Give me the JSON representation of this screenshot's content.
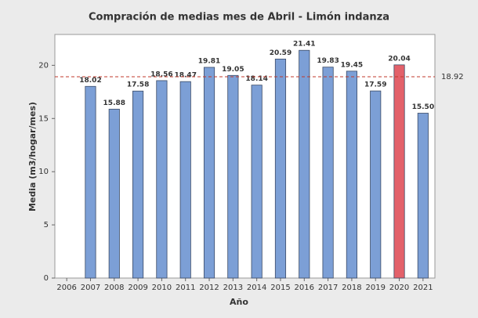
{
  "chart_data": {
    "type": "bar",
    "title": "Compración de medias mes de Abril - Limón indanza",
    "x_label": "Año",
    "y_label": "Media (m3/hogar/mes)",
    "categories": [
      "2006",
      "2007",
      "2008",
      "2009",
      "2010",
      "2011",
      "2012",
      "2013",
      "2014",
      "2015",
      "2016",
      "2017",
      "2018",
      "2019",
      "2020",
      "2021"
    ],
    "values": [
      null,
      18.02,
      15.88,
      17.58,
      18.56,
      18.47,
      19.81,
      19.05,
      18.14,
      20.59,
      21.41,
      19.83,
      19.45,
      17.59,
      20.04,
      15.5
    ],
    "value_labels": [
      null,
      "18.02",
      "15.88",
      "17.58",
      "18.56",
      "18.47",
      "19.81",
      "19.05",
      "18.14",
      "20.59",
      "21.41",
      "19.83",
      "19.45",
      "17.59",
      "20.04",
      "15.50"
    ],
    "colors": [
      "#7c9fd6",
      "#7c9fd6",
      "#7c9fd6",
      "#7c9fd6",
      "#7c9fd6",
      "#7c9fd6",
      "#7c9fd6",
      "#7c9fd6",
      "#7c9fd6",
      "#7c9fd6",
      "#7c9fd6",
      "#7c9fd6",
      "#7c9fd6",
      "#7c9fd6",
      "#e3616a",
      "#7c9fd6"
    ],
    "reference_line": {
      "value": 18.92,
      "color": "#c0392b"
    },
    "ylim": [
      0,
      22.9
    ],
    "yticks": [
      0,
      5,
      10,
      15,
      20
    ],
    "grid": false
  }
}
